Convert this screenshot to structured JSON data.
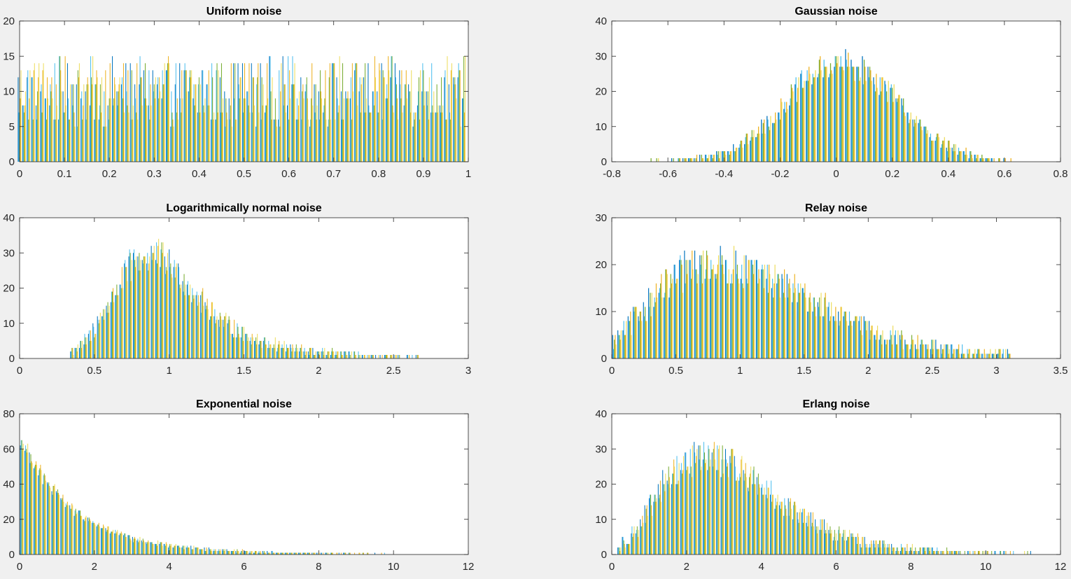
{
  "figure": {
    "background": "#f0f0f0",
    "series_colors": [
      "#0072bd",
      "#4dbeee",
      "#77ac30",
      "#edb120",
      "#eddc5c"
    ]
  },
  "chart_data": [
    {
      "id": "uniform",
      "type": "bar",
      "title": "Uniform noise",
      "xlabel": "",
      "ylabel": "",
      "xlim": [
        0,
        1
      ],
      "ylim": [
        0,
        20
      ],
      "xticks": [
        0,
        0.1,
        0.2,
        0.3,
        0.4,
        0.5,
        0.6,
        0.7,
        0.8,
        0.9,
        1
      ],
      "xtick_labels": [
        "0",
        "0.1",
        "0.2",
        "0.3",
        "0.4",
        "0.5",
        "0.6",
        "0.7",
        "0.8",
        "0.9",
        "1"
      ],
      "yticks": [
        0,
        5,
        10,
        15,
        20
      ],
      "ytick_labels": [
        "0",
        "5",
        "10",
        "15",
        "20"
      ],
      "grid": false,
      "bins": {
        "start": 0,
        "step": 0.01,
        "count": 100
      },
      "series_count": 5,
      "envelope": [
        10,
        10,
        10,
        10,
        10,
        10,
        10,
        10,
        10,
        10,
        10
      ],
      "envelope_x_step": 0.1,
      "spread": 3
    },
    {
      "id": "gaussian",
      "type": "bar",
      "title": "Gaussian noise",
      "xlabel": "",
      "ylabel": "",
      "xlim": [
        -0.8,
        0.8
      ],
      "ylim": [
        0,
        40
      ],
      "xticks": [
        -0.8,
        -0.6,
        -0.4,
        -0.2,
        0,
        0.2,
        0.4,
        0.6,
        0.8
      ],
      "xtick_labels": [
        "-0.8",
        "-0.6",
        "-0.4",
        "-0.2",
        "0",
        "0.2",
        "0.4",
        "0.6",
        "0.8"
      ],
      "yticks": [
        0,
        10,
        20,
        30,
        40
      ],
      "ytick_labels": [
        "0",
        "10",
        "20",
        "30",
        "40"
      ],
      "grid": false,
      "bins": {
        "start": -0.68,
        "step": 0.02,
        "count": 66
      },
      "series_count": 5,
      "envelope": [
        0,
        0,
        0.5,
        1,
        2,
        4,
        7,
        12,
        18,
        24,
        27,
        28,
        26,
        22,
        16,
        10,
        6,
        3,
        1.5,
        0.8,
        0.3,
        0
      ],
      "envelope_x_step": 0.0666667,
      "envelope_x_start": -0.7,
      "spread": 2.5
    },
    {
      "id": "lognormal",
      "type": "bar",
      "title": "Logarithmically normal noise",
      "xlabel": "",
      "ylabel": "",
      "xlim": [
        0,
        3
      ],
      "ylim": [
        0,
        40
      ],
      "xticks": [
        0,
        0.5,
        1,
        1.5,
        2,
        2.5,
        3
      ],
      "xtick_labels": [
        "0",
        "0.5",
        "1",
        "1.5",
        "2",
        "2.5",
        "3"
      ],
      "yticks": [
        0,
        10,
        20,
        30,
        40
      ],
      "ytick_labels": [
        "0",
        "10",
        "20",
        "30",
        "40"
      ],
      "grid": false,
      "bins": {
        "start": 0.35,
        "step": 0.03,
        "count": 80
      },
      "series_count": 5,
      "envelope": [
        0,
        0,
        1,
        5,
        16,
        27,
        30,
        25,
        17,
        11,
        7,
        4.5,
        3,
        2,
        1.5,
        1,
        0.5,
        0.3,
        0.2,
        0
      ],
      "envelope_x_step": 0.15,
      "envelope_x_start": 0,
      "spread": 3
    },
    {
      "id": "rayleigh",
      "type": "bar",
      "title": "Relay noise",
      "xlabel": "",
      "ylabel": "",
      "xlim": [
        0,
        3.5
      ],
      "ylim": [
        0,
        30
      ],
      "xticks": [
        0,
        0.5,
        1,
        1.5,
        2,
        2.5,
        3,
        3.5
      ],
      "xtick_labels": [
        "0",
        "0.5",
        "1",
        "1.5",
        "2",
        "2.5",
        "3",
        "3.5"
      ],
      "yticks": [
        0,
        10,
        20,
        30
      ],
      "ytick_labels": [
        "0",
        "10",
        "20",
        "30"
      ],
      "grid": false,
      "bins": {
        "start": 0.02,
        "step": 0.04,
        "count": 78
      },
      "series_count": 5,
      "envelope": [
        3,
        9,
        15,
        19,
        20,
        19.5,
        18,
        15.5,
        12.5,
        9.5,
        7,
        5,
        3.5,
        2.5,
        1.7,
        1.2,
        0.8,
        0.4
      ],
      "envelope_x_step": 0.1944,
      "envelope_x_start": 0,
      "spread": 2.5
    },
    {
      "id": "exponential",
      "type": "bar",
      "title": "Exponential noise",
      "xlabel": "",
      "ylabel": "",
      "xlim": [
        0,
        12
      ],
      "ylim": [
        0,
        80
      ],
      "xticks": [
        0,
        2,
        4,
        6,
        8,
        10,
        12
      ],
      "xtick_labels": [
        "0",
        "2",
        "4",
        "6",
        "8",
        "10",
        "12"
      ],
      "yticks": [
        0,
        20,
        40,
        60,
        80
      ],
      "ytick_labels": [
        "0",
        "20",
        "40",
        "60",
        "80"
      ],
      "grid": false,
      "bins": {
        "start": 0.06,
        "step": 0.12,
        "count": 99
      },
      "series_count": 5,
      "envelope": [
        66,
        40,
        24,
        15,
        9,
        6,
        4,
        2.8,
        1.9,
        1.2,
        0.9,
        0.6,
        0.4,
        0.3,
        0.2,
        0.1,
        0.1
      ],
      "envelope_x_step": 0.75,
      "envelope_x_start": 0,
      "spread": 2.5
    },
    {
      "id": "erlang",
      "type": "bar",
      "title": "Erlang noise",
      "xlabel": "",
      "ylabel": "",
      "xlim": [
        0,
        12
      ],
      "ylim": [
        0,
        40
      ],
      "xticks": [
        0,
        2,
        4,
        6,
        8,
        10,
        12
      ],
      "xtick_labels": [
        "0",
        "2",
        "4",
        "6",
        "8",
        "10",
        "12"
      ],
      "yticks": [
        0,
        10,
        20,
        30,
        40
      ],
      "ytick_labels": [
        "0",
        "10",
        "20",
        "30",
        "40"
      ],
      "grid": false,
      "bins": {
        "start": 0.2,
        "step": 0.12,
        "count": 96
      },
      "series_count": 5,
      "envelope": [
        0,
        8,
        22,
        28,
        27,
        22,
        15,
        10,
        6,
        3.5,
        2.2,
        1.3,
        0.8,
        0.5,
        0.3,
        0.2,
        0.1
      ],
      "envelope_x_step": 0.75,
      "envelope_x_start": 0,
      "spread": 3
    }
  ]
}
